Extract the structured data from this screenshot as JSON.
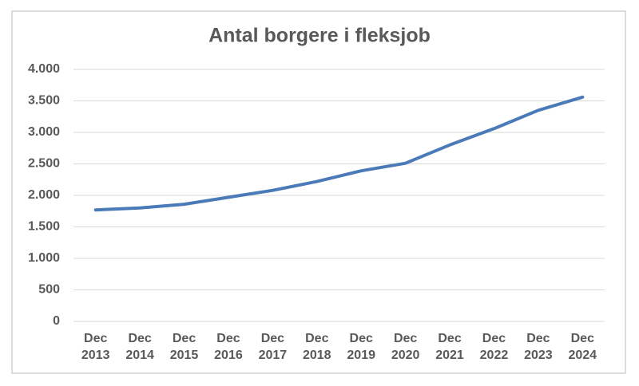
{
  "chart_data": {
    "type": "line",
    "title": "Antal borgere i fleksjob",
    "categories": [
      "Dec 2013",
      "Dec 2014",
      "Dec 2015",
      "Dec 2016",
      "Dec 2017",
      "Dec 2018",
      "Dec 2019",
      "Dec 2020",
      "Dec 2021",
      "Dec 2022",
      "Dec 2023",
      "Dec 2024"
    ],
    "series": [
      {
        "name": "Antal borgere i fleksjob",
        "color": "#4a7ab8",
        "values": [
          1770,
          1800,
          1860,
          1970,
          2080,
          2220,
          2390,
          2510,
          2800,
          3060,
          3350,
          3560
        ]
      }
    ],
    "ylim": [
      0,
      4000
    ],
    "yticks": [
      0,
      500,
      {
        "value": 1000,
        "label": "1.000"
      },
      {
        "value": 1500,
        "label": "1.500"
      },
      {
        "value": 2000,
        "label": "2.000"
      },
      {
        "value": 2500,
        "label": "2.500"
      },
      {
        "value": 3000,
        "label": "3.000"
      },
      {
        "value": 3500,
        "label": "3.500"
      },
      {
        "value": 4000,
        "label": "4.000"
      }
    ],
    "grid": true
  }
}
